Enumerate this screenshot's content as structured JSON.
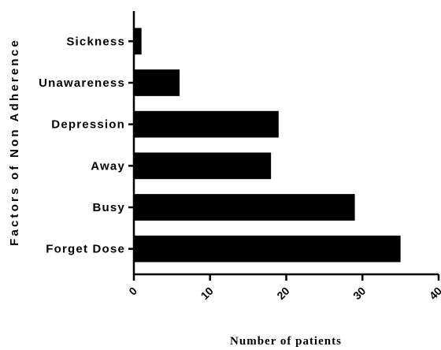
{
  "chart_data": {
    "type": "bar",
    "orientation": "horizontal",
    "categories": [
      "Sickness",
      "Unawareness",
      "Depression",
      "Away",
      "Busy",
      "Forget Dose"
    ],
    "values": [
      1,
      6,
      19,
      18,
      29,
      35
    ],
    "xlabel": "Number of patients",
    "ylabel": "Factors of Non Adherence",
    "xlim": [
      0,
      40
    ],
    "xticks": [
      "0",
      "10",
      "20",
      "30",
      "40"
    ],
    "grid": false,
    "bar_color": "#000000"
  }
}
